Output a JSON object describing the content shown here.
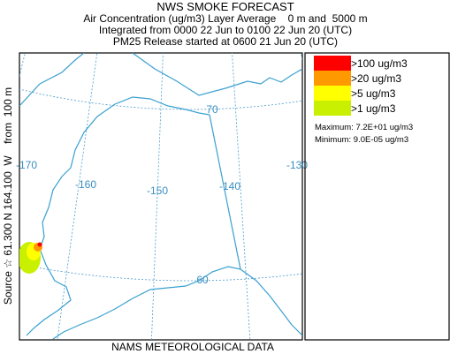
{
  "header": {
    "title": "NWS SMOKE FORECAST",
    "lines": [
      "Air Concentration (ug/m3) Layer Average    0 m and  5000 m",
      "Integrated from 0000 22 Jun to 0100 22 Jun 20 (UTC)",
      "PM25 Release started at 0600 21 Jun 20 (UTC)"
    ]
  },
  "source_label": "Source ☆ 61.300 N 164.100  W    from  100 m",
  "footer": "NAMS METEOROLOGICAL DATA",
  "legend": {
    "items": [
      {
        "label": ">100 ug/m3",
        "color": "#ff0000"
      },
      {
        "label": ">20 ug/m3",
        "color": "#ff9900"
      },
      {
        "label": ">5 ug/m3",
        "color": "#ffff00"
      },
      {
        "label": ">1 ug/m3",
        "color": "#c8f000"
      }
    ],
    "maximum": "Maximum: 7.2E+01 ug/m3",
    "minimum": "Minimum: 9.0E-05 ug/m3"
  },
  "map": {
    "longitude_labels": [
      "-170",
      "-160",
      "-150",
      "-140",
      "-130"
    ],
    "latitude_labels": [
      "70",
      "60"
    ]
  }
}
